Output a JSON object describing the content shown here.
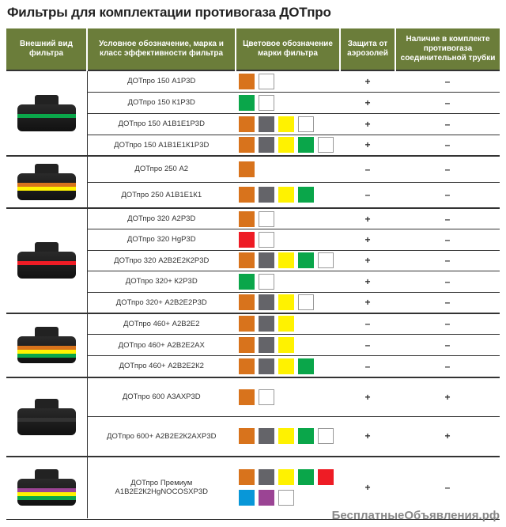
{
  "title": "Фильтры для  комплектации противогаза ДОТпро",
  "headers": [
    "Внешний вид фильтра",
    "Условное обозначение, марка и класс эффективности фильтра",
    "Цветовое обозначение марки фильтра",
    "Защита от аэрозолей",
    "Наличие в комплекте противогаза соединительной трубки"
  ],
  "colors": {
    "orange": "#d8731c",
    "gray": "#646469",
    "yellow": "#fff200",
    "green": "#0aa64a",
    "red": "#ee1c25",
    "blue": "#0897d8",
    "purple": "#9b4494",
    "white": "#ffffff",
    "header_bg": "#6b7d3a"
  },
  "groups": [
    {
      "stripe": [
        "#0aa64a"
      ],
      "rows": [
        {
          "name": "ДОТпро 150 А1Р3D",
          "colors": [
            "orange",
            "white"
          ],
          "aerosol": "+",
          "tube": "–"
        },
        {
          "name": "ДОТпро 150 К1Р3D",
          "colors": [
            "green",
            "white"
          ],
          "aerosol": "+",
          "tube": "–"
        },
        {
          "name": "ДОТпро 150 А1В1Е1Р3D",
          "colors": [
            "orange",
            "gray",
            "yellow",
            "white"
          ],
          "aerosol": "+",
          "tube": "–"
        },
        {
          "name": "ДОТпро 150 А1В1Е1К1Р3D",
          "colors": [
            "orange",
            "gray",
            "yellow",
            "green",
            "white"
          ],
          "aerosol": "+",
          "tube": "–"
        }
      ]
    },
    {
      "stripe": [
        "#d8731c",
        "#fff200"
      ],
      "rows": [
        {
          "name": "ДОТпро 250 А2",
          "colors": [
            "orange"
          ],
          "aerosol": "–",
          "tube": "–"
        },
        {
          "name": "ДОТпро 250 А1В1Е1К1",
          "colors": [
            "orange",
            "gray",
            "yellow",
            "green"
          ],
          "aerosol": "–",
          "tube": "–"
        }
      ]
    },
    {
      "stripe": [
        "#ee1c25"
      ],
      "rows": [
        {
          "name": "ДОТпро 320 А2Р3D",
          "colors": [
            "orange",
            "white"
          ],
          "aerosol": "+",
          "tube": "–"
        },
        {
          "name": "ДОТпро 320 HgР3D",
          "colors": [
            "red",
            "white"
          ],
          "aerosol": "+",
          "tube": "–"
        },
        {
          "name": "ДОТпро 320 А2В2Е2К2Р3D",
          "colors": [
            "orange",
            "gray",
            "yellow",
            "green",
            "white"
          ],
          "aerosol": "+",
          "tube": "–"
        },
        {
          "name": "ДОТпро 320+ К2Р3D",
          "colors": [
            "green",
            "white"
          ],
          "aerosol": "+",
          "tube": "–"
        },
        {
          "name": "ДОТпро 320+ А2В2Е2Р3D",
          "colors": [
            "orange",
            "gray",
            "yellow",
            "white"
          ],
          "aerosol": "+",
          "tube": "–"
        }
      ]
    },
    {
      "stripe": [
        "#d8731c",
        "#fff200",
        "#0aa64a"
      ],
      "rows": [
        {
          "name": "ДОТпро 460+ А2В2Е2",
          "colors": [
            "orange",
            "gray",
            "yellow"
          ],
          "aerosol": "–",
          "tube": "–"
        },
        {
          "name": "ДОТпро 460+ А2В2Е2АХ",
          "colors": [
            "orange",
            "gray",
            "yellow"
          ],
          "aerosol": "–",
          "tube": "–"
        },
        {
          "name": "ДОТпро 460+ А2В2Е2К2",
          "colors": [
            "orange",
            "gray",
            "yellow",
            "green"
          ],
          "aerosol": "–",
          "tube": "–"
        }
      ]
    },
    {
      "stripe": [
        "#333333"
      ],
      "rows": [
        {
          "name": "ДОТпро 600 А3АХР3D",
          "colors": [
            "orange",
            "white"
          ],
          "aerosol": "+",
          "tube": "+"
        },
        {
          "name": "ДОТпро 600+ А2В2Е2К2АХР3D",
          "colors": [
            "orange",
            "gray",
            "yellow",
            "green",
            "white"
          ],
          "aerosol": "+",
          "tube": "+"
        }
      ]
    },
    {
      "stripe": [
        "#9b4494",
        "#fff200",
        "#0aa64a"
      ],
      "rows": [
        {
          "name": "ДОТпро Премиум А1В2Е2К2HgNOCOSХР3D",
          "colors": [
            "orange",
            "gray",
            "yellow",
            "green",
            "red",
            "blue",
            "purple",
            "white"
          ],
          "aerosol": "+",
          "tube": "–"
        }
      ]
    }
  ],
  "watermark": "БесплатныеОбъявления.рф"
}
